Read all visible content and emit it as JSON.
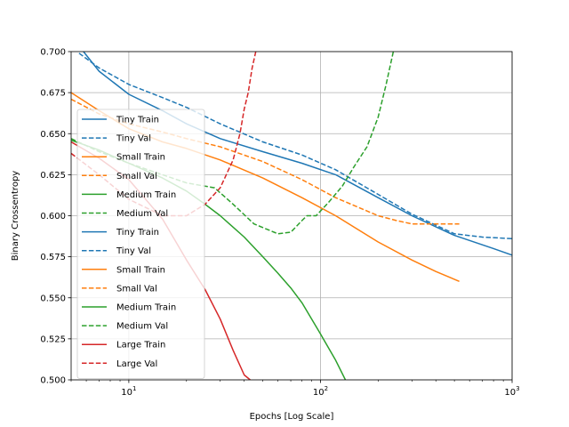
{
  "chart_data": {
    "type": "line",
    "title": "",
    "xlabel": "Epochs [Log Scale]",
    "ylabel": "Binary Crossentropy",
    "xscale": "log",
    "xlim": [
      5,
      1000
    ],
    "ylim": [
      0.5,
      0.7
    ],
    "x_ticks": [
      10,
      100,
      1000
    ],
    "x_tick_labels": [
      "10^1",
      "10^2",
      "10^3"
    ],
    "y_ticks": [
      0.5,
      0.525,
      0.55,
      0.575,
      0.6,
      0.625,
      0.65,
      0.675,
      0.7
    ],
    "y_tick_labels": [
      "0.500",
      "0.525",
      "0.550",
      "0.575",
      "0.600",
      "0.625",
      "0.650",
      "0.675",
      "0.700"
    ],
    "grid": true,
    "legend_position": "lower-left",
    "colors": {
      "tiny": "#1f77b4",
      "small": "#ff7f0e",
      "medium": "#2ca02c",
      "large": "#d62728"
    },
    "series": [
      {
        "name": "Tiny Train",
        "color": "#1f77b4",
        "dash": "solid",
        "x": [
          5.8,
          7,
          10,
          15,
          20,
          30,
          50,
          80,
          120,
          200,
          300,
          500,
          800,
          1000
        ],
        "y": [
          0.7,
          0.688,
          0.674,
          0.664,
          0.656,
          0.647,
          0.639,
          0.632,
          0.625,
          0.611,
          0.6,
          0.588,
          0.58,
          0.576
        ]
      },
      {
        "name": "Tiny Val",
        "color": "#1f77b4",
        "dash": "dashed",
        "x": [
          5.5,
          7,
          10,
          15,
          20,
          30,
          50,
          80,
          120,
          200,
          300,
          500,
          700,
          1000
        ],
        "y": [
          0.699,
          0.69,
          0.68,
          0.672,
          0.666,
          0.656,
          0.645,
          0.637,
          0.628,
          0.613,
          0.601,
          0.589,
          0.587,
          0.586
        ]
      },
      {
        "name": "Small Train",
        "color": "#ff7f0e",
        "dash": "solid",
        "x": [
          5,
          7,
          10,
          15,
          20,
          30,
          50,
          80,
          120,
          200,
          300,
          400,
          530
        ],
        "y": [
          0.675,
          0.664,
          0.653,
          0.645,
          0.641,
          0.634,
          0.623,
          0.611,
          0.6,
          0.584,
          0.573,
          0.566,
          0.56
        ]
      },
      {
        "name": "Small Val",
        "color": "#ff7f0e",
        "dash": "dashed",
        "x": [
          5,
          7,
          10,
          15,
          20,
          30,
          50,
          80,
          120,
          200,
          250,
          300,
          400,
          530
        ],
        "y": [
          0.671,
          0.662,
          0.656,
          0.651,
          0.647,
          0.642,
          0.633,
          0.622,
          0.611,
          0.6,
          0.597,
          0.595,
          0.595,
          0.595
        ]
      },
      {
        "name": "Medium Train",
        "color": "#2ca02c",
        "dash": "solid",
        "x": [
          5,
          7,
          10,
          15,
          20,
          25,
          30,
          40,
          50,
          60,
          70,
          80,
          100,
          120,
          135
        ],
        "y": [
          0.646,
          0.64,
          0.632,
          0.623,
          0.615,
          0.607,
          0.6,
          0.587,
          0.575,
          0.565,
          0.556,
          0.547,
          0.528,
          0.512,
          0.5
        ]
      },
      {
        "name": "Medium Val",
        "color": "#2ca02c",
        "dash": "dashed",
        "x": [
          5,
          7,
          10,
          15,
          20,
          28,
          35,
          45,
          60,
          70,
          80,
          85,
          95,
          110,
          130,
          150,
          175,
          200,
          220,
          240
        ],
        "y": [
          0.647,
          0.639,
          0.632,
          0.625,
          0.62,
          0.617,
          0.607,
          0.595,
          0.589,
          0.59,
          0.597,
          0.6,
          0.6,
          0.608,
          0.618,
          0.63,
          0.642,
          0.66,
          0.68,
          0.7
        ]
      },
      {
        "name": "Large Train",
        "color": "#d62728",
        "dash": "solid",
        "x": [
          5,
          7,
          10,
          15,
          20,
          25,
          30,
          35,
          40,
          43
        ],
        "y": [
          0.645,
          0.635,
          0.622,
          0.598,
          0.573,
          0.555,
          0.537,
          0.518,
          0.503,
          0.5
        ]
      },
      {
        "name": "Large Val",
        "color": "#d62728",
        "dash": "dashed",
        "x": [
          5,
          7,
          10,
          15,
          20,
          25,
          30,
          35,
          38,
          40,
          42,
          44,
          46
        ],
        "y": [
          0.638,
          0.625,
          0.61,
          0.6,
          0.6,
          0.607,
          0.617,
          0.634,
          0.65,
          0.665,
          0.675,
          0.69,
          0.7
        ]
      }
    ],
    "legend": [
      {
        "label": "Tiny Train",
        "color": "#1f77b4",
        "dash": "solid"
      },
      {
        "label": "Tiny Val",
        "color": "#1f77b4",
        "dash": "dashed"
      },
      {
        "label": "Small Train",
        "color": "#ff7f0e",
        "dash": "solid"
      },
      {
        "label": "Small Val",
        "color": "#ff7f0e",
        "dash": "dashed"
      },
      {
        "label": "Medium Train",
        "color": "#2ca02c",
        "dash": "solid"
      },
      {
        "label": "Medium Val",
        "color": "#2ca02c",
        "dash": "dashed"
      },
      {
        "label": "Tiny Train",
        "color": "#1f77b4",
        "dash": "solid"
      },
      {
        "label": "Tiny Val",
        "color": "#1f77b4",
        "dash": "dashed"
      },
      {
        "label": "Small Train",
        "color": "#ff7f0e",
        "dash": "solid"
      },
      {
        "label": "Small Val",
        "color": "#ff7f0e",
        "dash": "dashed"
      },
      {
        "label": "Medium Train",
        "color": "#2ca02c",
        "dash": "solid"
      },
      {
        "label": "Medium Val",
        "color": "#2ca02c",
        "dash": "dashed"
      },
      {
        "label": "Large Train",
        "color": "#d62728",
        "dash": "solid"
      },
      {
        "label": "Large Val",
        "color": "#d62728",
        "dash": "dashed"
      }
    ]
  }
}
